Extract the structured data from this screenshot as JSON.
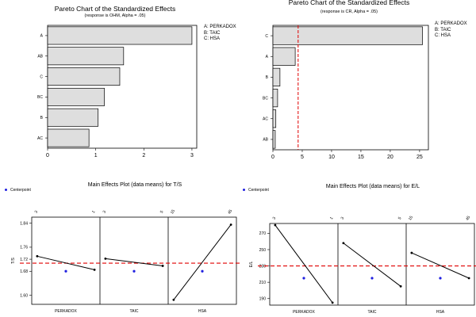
{
  "chart_data": [
    {
      "type": "bar",
      "orientation": "horizontal",
      "title": "Pareto Chart of the Standardized Effects",
      "subtitle": "(response is OHM, Alpha = .05)",
      "categories": [
        "A",
        "AB",
        "C",
        "BC",
        "B",
        "AC"
      ],
      "values": [
        3.0,
        1.58,
        1.5,
        1.18,
        1.05,
        0.86
      ],
      "xlim": [
        0,
        3.1
      ],
      "xticks": [
        "0",
        "1",
        "2",
        "3"
      ],
      "reference_line": null,
      "legend": [
        "A: PERKADOX",
        "B: TAIC",
        "C: HSA"
      ],
      "legend_position": "top-right"
    },
    {
      "type": "bar",
      "orientation": "horizontal",
      "title": "Pareto Chart of the Standardized Effects",
      "subtitle": "(response is CR, Alpha = .05)",
      "categories": [
        "C",
        "A",
        "B",
        "BC",
        "AC",
        "AB"
      ],
      "values": [
        25.5,
        3.8,
        1.2,
        0.8,
        0.5,
        0.4
      ],
      "xlim": [
        0,
        26.5
      ],
      "xticks": [
        "0",
        "5",
        "10",
        "15",
        "20",
        "25"
      ],
      "reference_line": 4.3,
      "legend": [
        "A: PERKADOX",
        "B: TAIC",
        "C: HSA"
      ],
      "legend_position": "top-right"
    },
    {
      "type": "line",
      "title": "Main Effects Plot (data means) for T/S",
      "ylabel": "T/S",
      "legend": [
        "Centerpoint"
      ],
      "ylim": [
        1.57,
        1.86
      ],
      "yticks": [
        "1.60",
        "1.68",
        "1.72",
        "1.76",
        "1.84"
      ],
      "ytick_values": [
        1.6,
        1.68,
        1.72,
        1.76,
        1.84
      ],
      "overall_mean": 1.707,
      "center_point": 1.68,
      "factors": [
        {
          "name": "PERKADOX",
          "levels": [
            "3",
            "1"
          ],
          "means": [
            1.73,
            1.685
          ]
        },
        {
          "name": "TAIC",
          "levels": [
            "3",
            "5"
          ],
          "means": [
            1.722,
            1.698
          ]
        },
        {
          "name": "HSA",
          "levels": [
            "15",
            "45"
          ],
          "means": [
            1.585,
            1.835
          ]
        }
      ]
    },
    {
      "type": "line",
      "title": "Main Effects Plot (data means) for E/L",
      "ylabel": "E/L",
      "legend": [
        "Centerpoint"
      ],
      "ylim": [
        182,
        282
      ],
      "yticks": [
        "190",
        "210",
        "230",
        "250",
        "270"
      ],
      "ytick_values": [
        190,
        210,
        230,
        250,
        270
      ],
      "overall_mean": 230,
      "center_point": 215,
      "factors": [
        {
          "name": "PERKADOX",
          "levels": [
            "3",
            "1"
          ],
          "means": [
            280,
            185
          ]
        },
        {
          "name": "TAIC",
          "levels": [
            "3",
            "5"
          ],
          "means": [
            258,
            205
          ]
        },
        {
          "name": "HSA",
          "levels": [
            "15",
            "45"
          ],
          "means": [
            246,
            215
          ]
        }
      ]
    }
  ],
  "colors": {
    "bar_fill": "#dedede",
    "reference_line": "#e00000",
    "center_point": "#1f1fe0",
    "line": "#000000"
  }
}
